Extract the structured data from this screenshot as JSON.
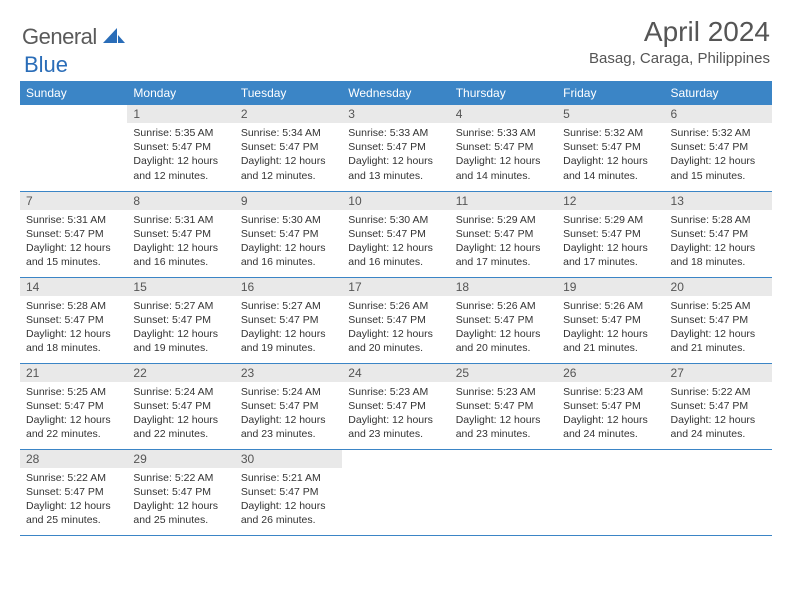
{
  "logo": {
    "general": "General",
    "blue": "Blue"
  },
  "title": "April 2024",
  "location": "Basag, Caraga, Philippines",
  "colors": {
    "header_bg": "#3b85c6",
    "header_text": "#ffffff",
    "daynum_bg": "#e9e9e9",
    "text": "#333333",
    "rule": "#3b85c6",
    "logo_gray": "#5a5a5a",
    "logo_blue": "#2a6db8"
  },
  "weekdays": [
    "Sunday",
    "Monday",
    "Tuesday",
    "Wednesday",
    "Thursday",
    "Friday",
    "Saturday"
  ],
  "weeks": [
    [
      {
        "n": "",
        "sunrise": "",
        "sunset": "",
        "daylight": ""
      },
      {
        "n": "1",
        "sunrise": "Sunrise: 5:35 AM",
        "sunset": "Sunset: 5:47 PM",
        "daylight": "Daylight: 12 hours and 12 minutes."
      },
      {
        "n": "2",
        "sunrise": "Sunrise: 5:34 AM",
        "sunset": "Sunset: 5:47 PM",
        "daylight": "Daylight: 12 hours and 12 minutes."
      },
      {
        "n": "3",
        "sunrise": "Sunrise: 5:33 AM",
        "sunset": "Sunset: 5:47 PM",
        "daylight": "Daylight: 12 hours and 13 minutes."
      },
      {
        "n": "4",
        "sunrise": "Sunrise: 5:33 AM",
        "sunset": "Sunset: 5:47 PM",
        "daylight": "Daylight: 12 hours and 14 minutes."
      },
      {
        "n": "5",
        "sunrise": "Sunrise: 5:32 AM",
        "sunset": "Sunset: 5:47 PM",
        "daylight": "Daylight: 12 hours and 14 minutes."
      },
      {
        "n": "6",
        "sunrise": "Sunrise: 5:32 AM",
        "sunset": "Sunset: 5:47 PM",
        "daylight": "Daylight: 12 hours and 15 minutes."
      }
    ],
    [
      {
        "n": "7",
        "sunrise": "Sunrise: 5:31 AM",
        "sunset": "Sunset: 5:47 PM",
        "daylight": "Daylight: 12 hours and 15 minutes."
      },
      {
        "n": "8",
        "sunrise": "Sunrise: 5:31 AM",
        "sunset": "Sunset: 5:47 PM",
        "daylight": "Daylight: 12 hours and 16 minutes."
      },
      {
        "n": "9",
        "sunrise": "Sunrise: 5:30 AM",
        "sunset": "Sunset: 5:47 PM",
        "daylight": "Daylight: 12 hours and 16 minutes."
      },
      {
        "n": "10",
        "sunrise": "Sunrise: 5:30 AM",
        "sunset": "Sunset: 5:47 PM",
        "daylight": "Daylight: 12 hours and 16 minutes."
      },
      {
        "n": "11",
        "sunrise": "Sunrise: 5:29 AM",
        "sunset": "Sunset: 5:47 PM",
        "daylight": "Daylight: 12 hours and 17 minutes."
      },
      {
        "n": "12",
        "sunrise": "Sunrise: 5:29 AM",
        "sunset": "Sunset: 5:47 PM",
        "daylight": "Daylight: 12 hours and 17 minutes."
      },
      {
        "n": "13",
        "sunrise": "Sunrise: 5:28 AM",
        "sunset": "Sunset: 5:47 PM",
        "daylight": "Daylight: 12 hours and 18 minutes."
      }
    ],
    [
      {
        "n": "14",
        "sunrise": "Sunrise: 5:28 AM",
        "sunset": "Sunset: 5:47 PM",
        "daylight": "Daylight: 12 hours and 18 minutes."
      },
      {
        "n": "15",
        "sunrise": "Sunrise: 5:27 AM",
        "sunset": "Sunset: 5:47 PM",
        "daylight": "Daylight: 12 hours and 19 minutes."
      },
      {
        "n": "16",
        "sunrise": "Sunrise: 5:27 AM",
        "sunset": "Sunset: 5:47 PM",
        "daylight": "Daylight: 12 hours and 19 minutes."
      },
      {
        "n": "17",
        "sunrise": "Sunrise: 5:26 AM",
        "sunset": "Sunset: 5:47 PM",
        "daylight": "Daylight: 12 hours and 20 minutes."
      },
      {
        "n": "18",
        "sunrise": "Sunrise: 5:26 AM",
        "sunset": "Sunset: 5:47 PM",
        "daylight": "Daylight: 12 hours and 20 minutes."
      },
      {
        "n": "19",
        "sunrise": "Sunrise: 5:26 AM",
        "sunset": "Sunset: 5:47 PM",
        "daylight": "Daylight: 12 hours and 21 minutes."
      },
      {
        "n": "20",
        "sunrise": "Sunrise: 5:25 AM",
        "sunset": "Sunset: 5:47 PM",
        "daylight": "Daylight: 12 hours and 21 minutes."
      }
    ],
    [
      {
        "n": "21",
        "sunrise": "Sunrise: 5:25 AM",
        "sunset": "Sunset: 5:47 PM",
        "daylight": "Daylight: 12 hours and 22 minutes."
      },
      {
        "n": "22",
        "sunrise": "Sunrise: 5:24 AM",
        "sunset": "Sunset: 5:47 PM",
        "daylight": "Daylight: 12 hours and 22 minutes."
      },
      {
        "n": "23",
        "sunrise": "Sunrise: 5:24 AM",
        "sunset": "Sunset: 5:47 PM",
        "daylight": "Daylight: 12 hours and 23 minutes."
      },
      {
        "n": "24",
        "sunrise": "Sunrise: 5:23 AM",
        "sunset": "Sunset: 5:47 PM",
        "daylight": "Daylight: 12 hours and 23 minutes."
      },
      {
        "n": "25",
        "sunrise": "Sunrise: 5:23 AM",
        "sunset": "Sunset: 5:47 PM",
        "daylight": "Daylight: 12 hours and 23 minutes."
      },
      {
        "n": "26",
        "sunrise": "Sunrise: 5:23 AM",
        "sunset": "Sunset: 5:47 PM",
        "daylight": "Daylight: 12 hours and 24 minutes."
      },
      {
        "n": "27",
        "sunrise": "Sunrise: 5:22 AM",
        "sunset": "Sunset: 5:47 PM",
        "daylight": "Daylight: 12 hours and 24 minutes."
      }
    ],
    [
      {
        "n": "28",
        "sunrise": "Sunrise: 5:22 AM",
        "sunset": "Sunset: 5:47 PM",
        "daylight": "Daylight: 12 hours and 25 minutes."
      },
      {
        "n": "29",
        "sunrise": "Sunrise: 5:22 AM",
        "sunset": "Sunset: 5:47 PM",
        "daylight": "Daylight: 12 hours and 25 minutes."
      },
      {
        "n": "30",
        "sunrise": "Sunrise: 5:21 AM",
        "sunset": "Sunset: 5:47 PM",
        "daylight": "Daylight: 12 hours and 26 minutes."
      },
      {
        "n": "",
        "sunrise": "",
        "sunset": "",
        "daylight": ""
      },
      {
        "n": "",
        "sunrise": "",
        "sunset": "",
        "daylight": ""
      },
      {
        "n": "",
        "sunrise": "",
        "sunset": "",
        "daylight": ""
      },
      {
        "n": "",
        "sunrise": "",
        "sunset": "",
        "daylight": ""
      }
    ]
  ]
}
